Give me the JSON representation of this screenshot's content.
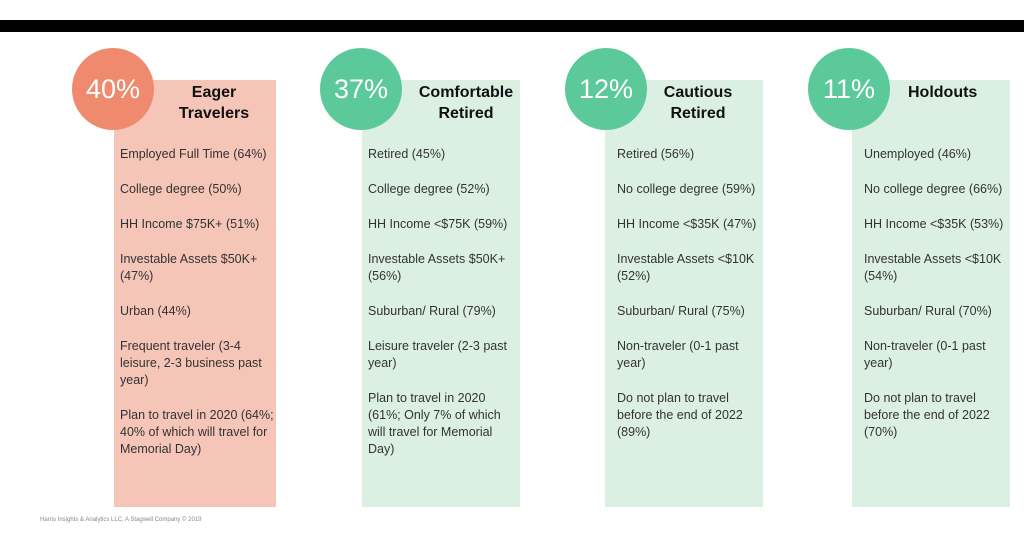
{
  "colors": {
    "eager_box": "#f5c5b8",
    "eager_circle": "#ef8a6e",
    "green_box": "#dcefe3",
    "green_circle": "#5cc99a"
  },
  "segments": [
    {
      "percent": "40%",
      "name": "Eager\nTravelers",
      "items": [
        "Employed Full Time (64%)",
        "College degree (50%)",
        "HH Income $75K+ (51%)",
        "Investable Assets $50K+ (47%)",
        "Urban (44%)",
        "Frequent traveler (3-4 leisure, 2-3 business past year)",
        "Plan to travel in 2020 (64%; 40% of which will travel for Memorial Day)"
      ]
    },
    {
      "percent": "37%",
      "name": "Comfortable\nRetired",
      "items": [
        "Retired (45%)",
        "College degree (52%)",
        "HH Income <$75K (59%)",
        "Investable Assets $50K+ (56%)",
        "Suburban/ Rural (79%)",
        "Leisure traveler (2-3 past year)",
        "Plan to travel in 2020 (61%; Only 7% of which will travel for Memorial Day)"
      ]
    },
    {
      "percent": "12%",
      "name": "Cautious\nRetired",
      "items": [
        "Retired (56%)",
        "No college degree (59%)",
        "HH Income <$35K (47%)",
        "Investable Assets <$10K (52%)",
        "Suburban/ Rural (75%)",
        "Non-traveler (0-1 past year)",
        "Do not plan to travel before the end of 2022 (89%)"
      ]
    },
    {
      "percent": "11%",
      "name": "Holdouts",
      "items": [
        "Unemployed (46%)",
        "No college degree (66%)",
        "HH Income <$35K (53%)",
        "Investable Assets <$10K (54%)",
        "Suburban/ Rural (70%)",
        "Non-traveler (0-1 past year)",
        "Do not plan to travel before the end of 2022 (70%)"
      ]
    }
  ],
  "footer": "Harris Insights & Analytics LLC, A Stagwell Company © 2019"
}
